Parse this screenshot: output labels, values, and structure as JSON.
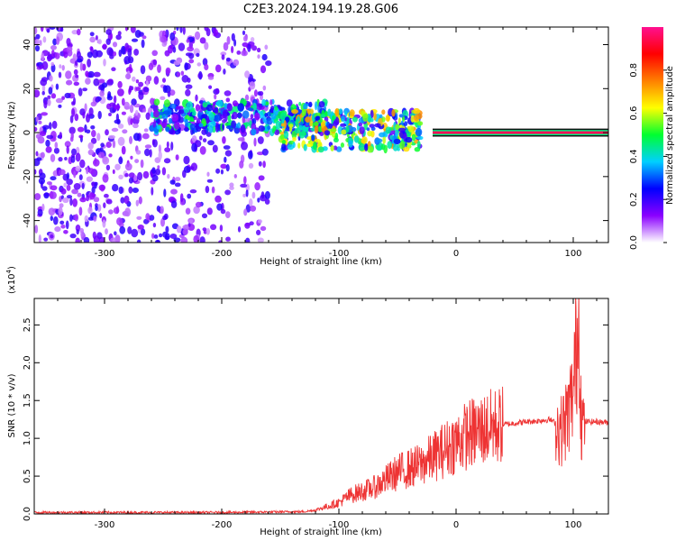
{
  "title": "C2E3.2024.194.19.28.G06",
  "chart_data": [
    {
      "type": "heatmap",
      "xlabel": "Height of straight line (km)",
      "ylabel": "Frequency (Hz)",
      "xlim": [
        -360,
        130
      ],
      "ylim": [
        -50,
        48
      ],
      "xticks": [
        -300,
        -200,
        -100,
        0,
        100
      ],
      "xtick_labels": [
        "-300",
        "-200",
        "-100",
        "0",
        "100"
      ],
      "yticks": [
        -40,
        -20,
        0,
        20,
        40
      ],
      "ytick_labels": [
        "-40",
        "-20",
        "0",
        "20",
        "40"
      ],
      "colorbar": {
        "label": "Normalized spectral amplitude",
        "range": [
          0,
          1
        ],
        "ticks": [
          0.0,
          0.2,
          0.4,
          0.6,
          0.8
        ],
        "tick_labels": [
          "0.0",
          "0.2",
          "0.4",
          "0.6",
          "0.8"
        ],
        "colors": [
          "#ffffff",
          "#8a00ff",
          "#0000ff",
          "#00d0ff",
          "#00ff30",
          "#ffff00",
          "#ff8000",
          "#ff0000",
          "#ff1090"
        ]
      },
      "regions": [
        {
          "x": [
            -360,
            -160
          ],
          "f": [
            -50,
            48
          ],
          "amplitude": 0.15,
          "description": "broadband noise"
        },
        {
          "x": [
            -260,
            -110
          ],
          "f": [
            0,
            14
          ],
          "amplitude": 0.35
        },
        {
          "x": [
            -150,
            -30
          ],
          "f": [
            -8,
            10
          ],
          "amplitude": 0.5
        },
        {
          "x": [
            -20,
            130
          ],
          "f": [
            -1,
            1
          ],
          "amplitude": 0.95
        }
      ],
      "grid": false
    },
    {
      "type": "line",
      "xlabel": "Height of straight line (km)",
      "ylabel": "SNR (10 * v/v)",
      "y_multiplier_label": "(x10",
      "y_multiplier_exp": "4",
      "y_multiplier_close": ")",
      "xlim": [
        -360,
        130
      ],
      "ylim": [
        0,
        2.85
      ],
      "xticks": [
        -300,
        -200,
        -100,
        0,
        100
      ],
      "xtick_labels": [
        "-300",
        "-200",
        "-100",
        "0",
        "100"
      ],
      "yticks": [
        0,
        0.5,
        1.0,
        1.5,
        2.0,
        2.5
      ],
      "ytick_labels": [
        "0.0",
        "0.5",
        "1.0",
        "1.5",
        "2.0",
        "2.5"
      ],
      "color": "#ee3333",
      "series": [
        {
          "x": [
            -360,
            -300,
            -200,
            -130,
            -120,
            -100,
            -90,
            -80,
            -70,
            -60,
            -50,
            -40,
            -30,
            -20,
            -10,
            0,
            10,
            20,
            30,
            40,
            50,
            60,
            70,
            80,
            85,
            90,
            95,
            100,
            103,
            105,
            107,
            110,
            120,
            130
          ],
          "y": [
            0.02,
            0.02,
            0.02,
            0.03,
            0.05,
            0.15,
            0.25,
            0.3,
            0.35,
            0.45,
            0.55,
            0.6,
            0.65,
            0.75,
            0.85,
            0.95,
            1.05,
            1.1,
            1.15,
            1.18,
            1.2,
            1.22,
            1.23,
            1.25,
            1.2,
            1.1,
            1.3,
            1.6,
            2.3,
            2.6,
            1.2,
            1.22,
            1.22,
            1.21
          ]
        }
      ],
      "grid": false
    }
  ]
}
